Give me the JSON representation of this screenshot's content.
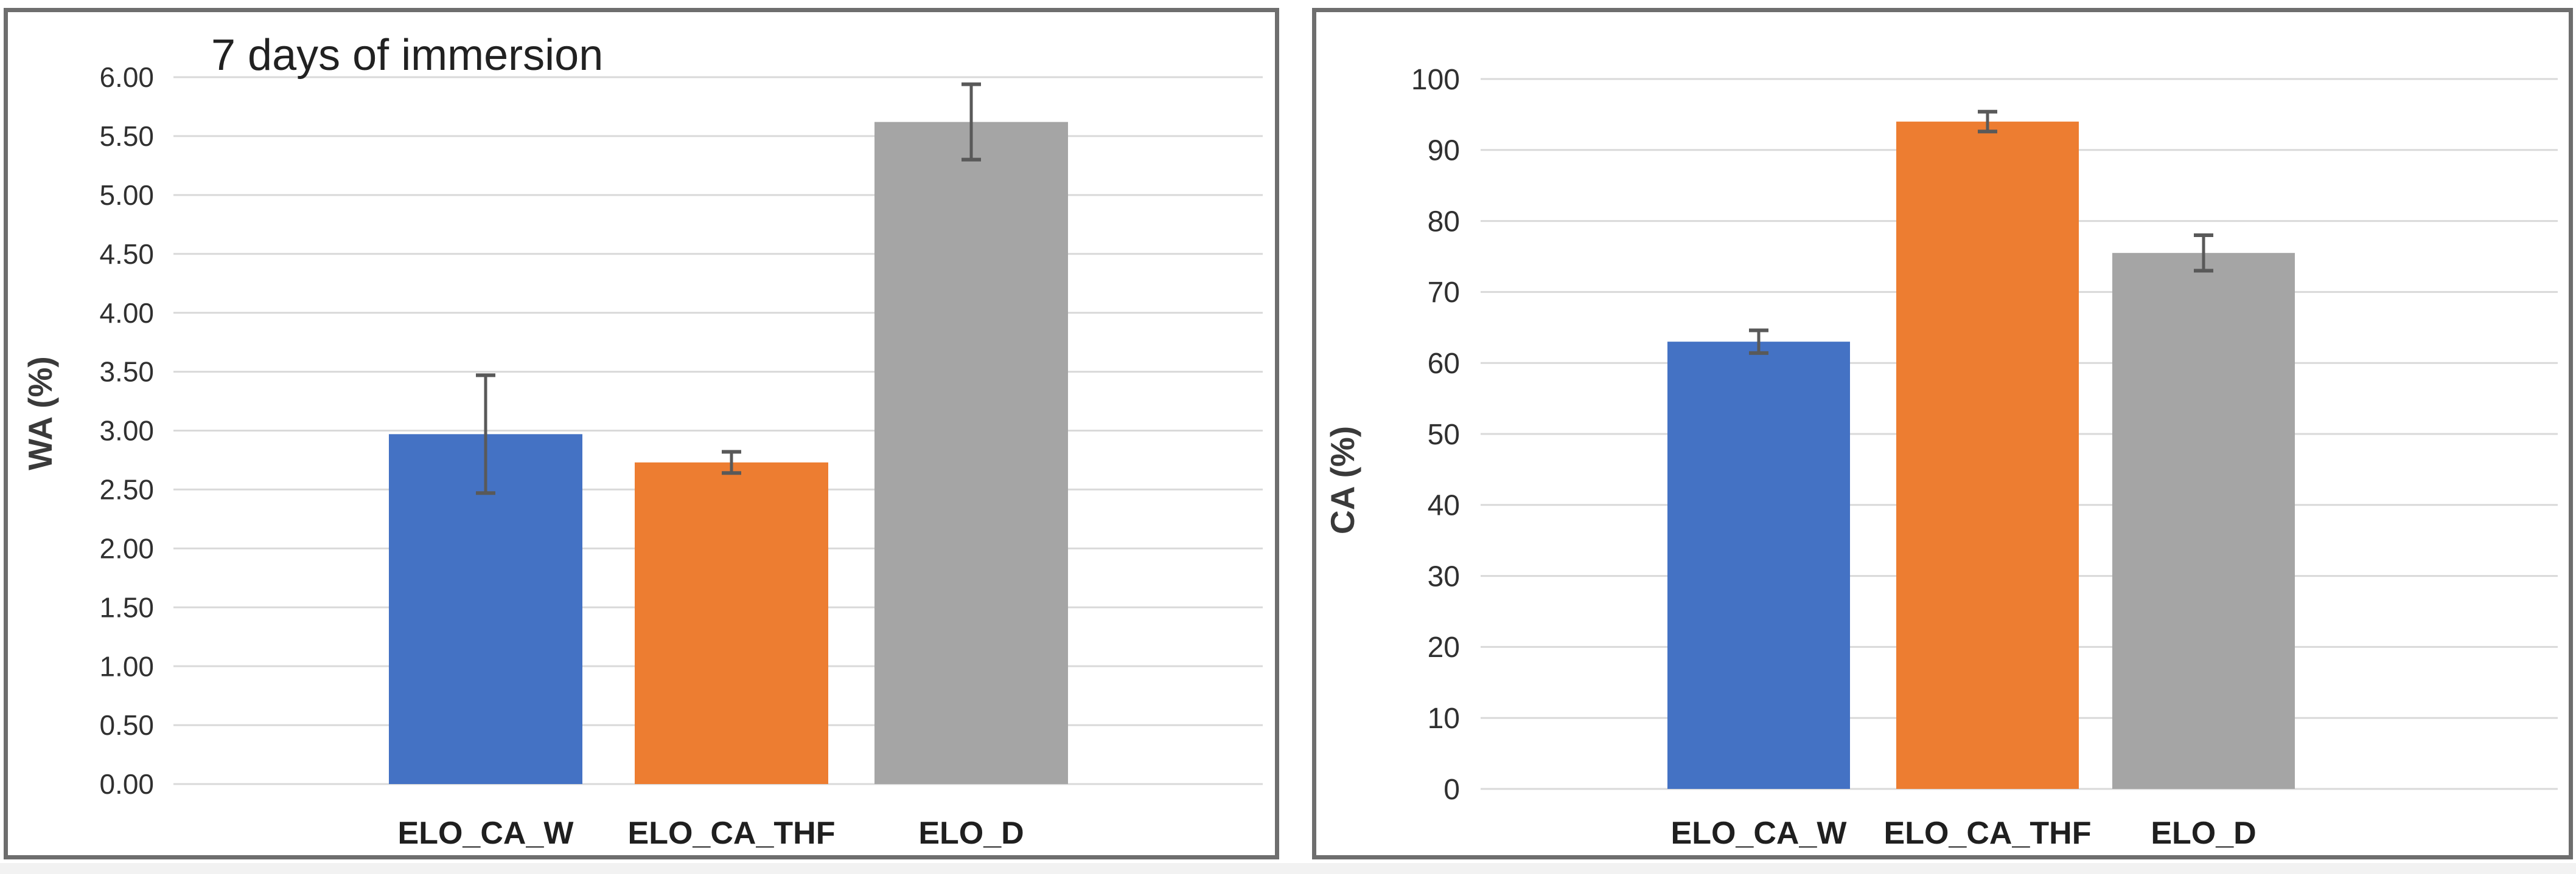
{
  "figure": {
    "description_left_panel_title": "7 days of immersion",
    "colors": {
      "bar_blue": "#4472C4",
      "bar_orange": "#ED7D31",
      "bar_gray": "#A5A5A5",
      "error_bar": "#595959",
      "gridline": "#D9D9D9",
      "panel_border": "#6E6E6E",
      "title_text": "#212121",
      "tick_text": "#303030",
      "category_text": "#1F1F1F",
      "axis_title_text": "#3A3A3A"
    }
  },
  "chart_data": [
    {
      "type": "bar",
      "title": "7 days of immersion",
      "xlabel": "",
      "ylabel": "WA (%)",
      "categories": [
        "ELO_CA_W",
        "ELO_CA_THF",
        "ELO_D"
      ],
      "values": [
        2.97,
        2.73,
        5.62
      ],
      "errors": [
        0.5,
        0.09,
        0.32
      ],
      "ylim": [
        0,
        6
      ],
      "ytick_step": 0.5,
      "ytick_labels": [
        "0.00",
        "0.50",
        "1.00",
        "1.50",
        "2.00",
        "2.50",
        "3.00",
        "3.50",
        "4.00",
        "4.50",
        "5.00",
        "5.50",
        "6.00"
      ],
      "grid": true,
      "legend": false,
      "bar_colors": [
        "#4472C4",
        "#ED7D31",
        "#A5A5A5"
      ]
    },
    {
      "type": "bar",
      "title": "",
      "xlabel": "",
      "ylabel": "CA (%)",
      "categories": [
        "ELO_CA_W",
        "ELO_CA_THF",
        "ELO_D"
      ],
      "values": [
        63,
        94,
        75.5
      ],
      "errors": [
        1.6,
        1.4,
        2.5
      ],
      "ylim": [
        0,
        100
      ],
      "ytick_step": 10,
      "ytick_labels": [
        "0",
        "10",
        "20",
        "30",
        "40",
        "50",
        "60",
        "70",
        "80",
        "90",
        "100"
      ],
      "grid": true,
      "legend": false,
      "bar_colors": [
        "#4472C4",
        "#ED7D31",
        "#A5A5A5"
      ]
    }
  ]
}
